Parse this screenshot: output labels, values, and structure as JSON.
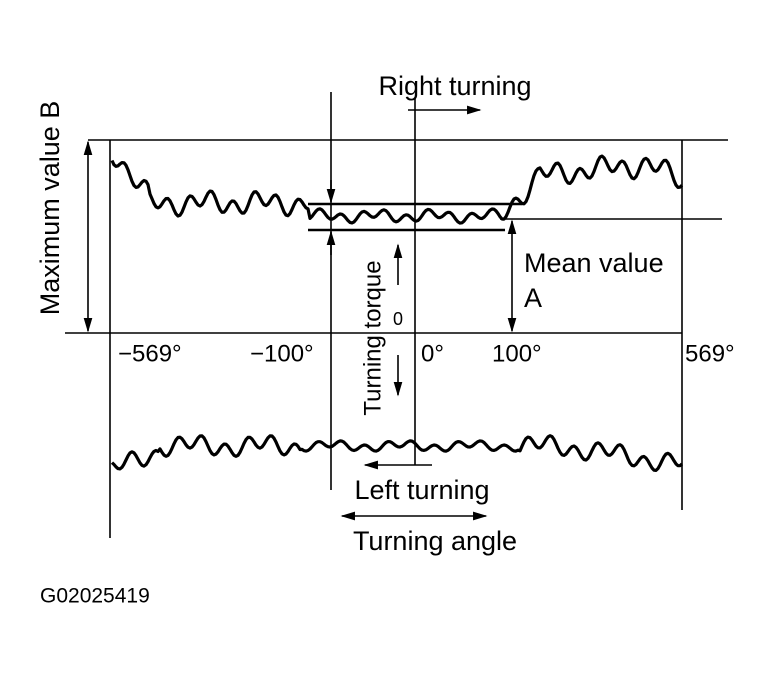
{
  "labels": {
    "right_turning": "Right turning",
    "maximum_value": "Maximum value B",
    "mean_value": "Mean value",
    "mean_value_letter": "A",
    "turning_torque": "Turning torque",
    "zero_torque": "0",
    "angle_ticks": [
      "−569°",
      "−100°",
      "0°",
      "100°",
      "569°"
    ],
    "left_turning": "Left turning",
    "turning_angle": "Turning angle",
    "figure_id": "G02025419"
  }
}
